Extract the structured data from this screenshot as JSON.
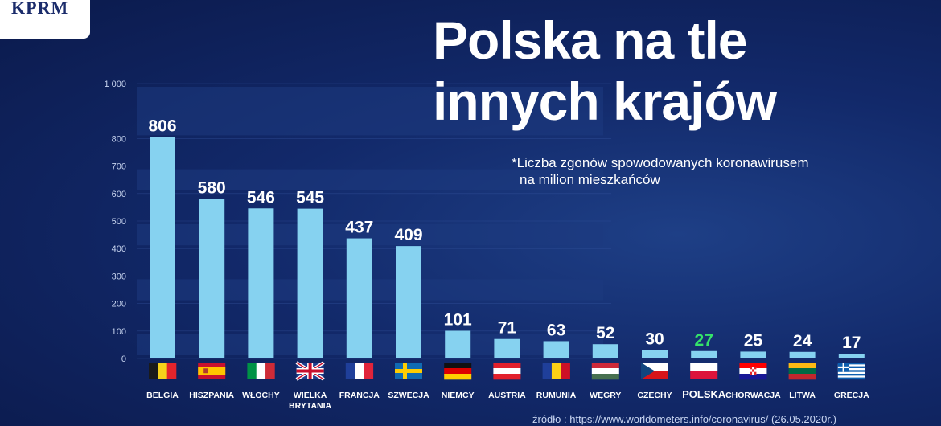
{
  "brand": {
    "logo_text": "KPRM"
  },
  "header": {
    "title_line1": "Polska na tle",
    "title_line2": "innych krajów",
    "subtitle_line1": "*Liczba zgonów spowodowanych koronawirusem",
    "subtitle_line2": "na milion mieszkańców"
  },
  "footer": {
    "source": "źródło : https://www.worldometers.info/coronavirus/ (26.05.2020r.)"
  },
  "chart_data": {
    "type": "bar",
    "categories": [
      "BELGIA",
      "HISZPANIA",
      "WŁOCHY",
      "WIELKA BRYTANIA",
      "FRANCJA",
      "SZWECJA",
      "NIEMCY",
      "AUSTRIA",
      "RUMUNIA",
      "WĘGRY",
      "CZECHY",
      "POLSKA",
      "CHORWACJA",
      "LITWA",
      "GRECJA"
    ],
    "values": [
      806,
      580,
      546,
      545,
      437,
      409,
      101,
      71,
      63,
      52,
      30,
      27,
      25,
      24,
      17
    ],
    "value_labels": [
      "806",
      "580",
      "546",
      "545",
      "437",
      "409",
      "101",
      "71",
      "63",
      "52",
      "30",
      "27",
      "25",
      "24",
      "17"
    ],
    "y_ticks": [
      "0",
      "100",
      "200",
      "300",
      "400",
      "500",
      "600",
      "700",
      "800",
      "1 000"
    ],
    "y_tick_values": [
      0,
      100,
      200,
      300,
      400,
      500,
      600,
      700,
      800,
      1000
    ],
    "ylim": [
      0,
      1000
    ],
    "highlight_category": "POLSKA",
    "grid": true,
    "legend": "none",
    "flags": [
      "BELGIA",
      "HISZPANIA",
      "WŁOCHY",
      "WIELKA BRYTANIA",
      "FRANCJA",
      "SZWECJA",
      "NIEMCY",
      "AUSTRIA",
      "RUMUNIA",
      "WĘGRY",
      "CZECHY",
      "POLSKA",
      "CHORWACJA",
      "LITWA",
      "GRECJA"
    ],
    "colors": {
      "bar": "#86d2f0",
      "label": "#ffffff",
      "highlight": "#35e36a",
      "tick": "#c6d3ee",
      "band": "#1e3a7f"
    }
  }
}
